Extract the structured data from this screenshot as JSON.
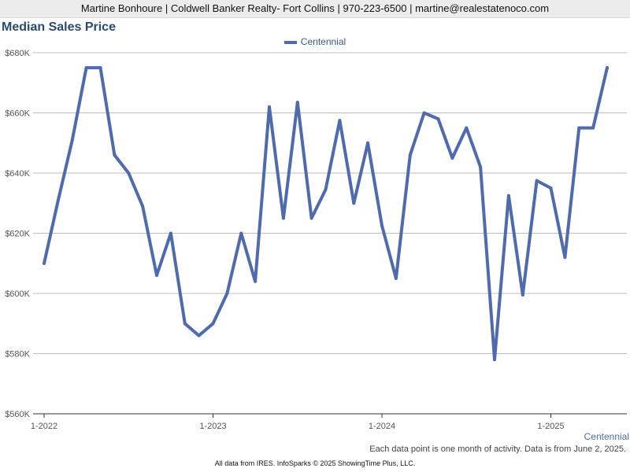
{
  "header": {
    "text": "Martine Bonhoure | Coldwell Banker Realty- Fort Collins | 970-223-6500 | martine@realestatenoco.com"
  },
  "note": "Each data point is one month of activity. Data is from June 2, 2025.",
  "footer": "All data from IRES. InfoSparks © 2025 ShowingTime Plus, LLC.",
  "colors": {
    "series": "#4f6aad",
    "grid": "#bdbdbd"
  },
  "chart_data": {
    "type": "line",
    "title": "Median Sales Price",
    "xlabel": "",
    "ylabel": "",
    "ylim": [
      560000,
      680000
    ],
    "y_ticks": [
      {
        "value": 560000,
        "label": "$560K"
      },
      {
        "value": 580000,
        "label": "$580K"
      },
      {
        "value": 600000,
        "label": "$600K"
      },
      {
        "value": 620000,
        "label": "$620K"
      },
      {
        "value": 640000,
        "label": "$640K"
      },
      {
        "value": 660000,
        "label": "$660K"
      },
      {
        "value": 680000,
        "label": "$680K"
      }
    ],
    "x_ticks": [
      "1-2022",
      "1-2023",
      "1-2024",
      "1-2025"
    ],
    "legend_position": "top-center",
    "grid": true,
    "series": [
      {
        "name": "Centennial",
        "x": [
          "1-2022",
          "2-2022",
          "3-2022",
          "4-2022",
          "5-2022",
          "6-2022",
          "7-2022",
          "8-2022",
          "9-2022",
          "10-2022",
          "11-2022",
          "12-2022",
          "1-2023",
          "2-2023",
          "3-2023",
          "4-2023",
          "5-2023",
          "6-2023",
          "7-2023",
          "8-2023",
          "9-2023",
          "10-2023",
          "11-2023",
          "12-2023",
          "1-2024",
          "2-2024",
          "3-2024",
          "4-2024",
          "5-2024",
          "6-2024",
          "7-2024",
          "8-2024",
          "9-2024",
          "10-2024",
          "11-2024",
          "12-2024",
          "1-2025",
          "2-2025",
          "3-2025",
          "4-2025",
          "5-2025"
        ],
        "values": [
          610000,
          631000,
          651000,
          675000,
          675000,
          646000,
          640000,
          629000,
          606000,
          620000,
          590000,
          586000,
          590000,
          600000,
          620000,
          604000,
          662000,
          625000,
          663500,
          625000,
          634500,
          657500,
          630000,
          650000,
          622500,
          605000,
          646000,
          660000,
          658000,
          645000,
          655000,
          642000,
          578000,
          632500,
          599500,
          637500,
          635000,
          612000,
          655000,
          655000,
          675000
        ]
      }
    ]
  }
}
